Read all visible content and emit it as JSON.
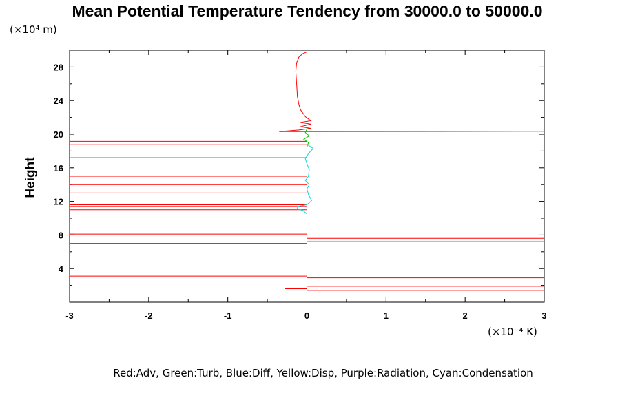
{
  "chart_data": {
    "type": "line",
    "title": "Mean Potential Temperature Tendency from 30000.0 to 50000.0",
    "ylabel": "Height",
    "y_unit": "(×10⁴ m)",
    "x_unit": "(×10⁻⁴ K)",
    "xlim": [
      -3,
      3
    ],
    "ylim": [
      0,
      30
    ],
    "x_ticks": [
      -3,
      -2,
      -1,
      0,
      1,
      2,
      3
    ],
    "x_tick_labels": [
      "-3",
      "-2",
      "-1",
      "0",
      "1",
      "2",
      "3"
    ],
    "y_ticks": [
      4,
      8,
      12,
      16,
      20,
      24,
      28
    ],
    "y_tick_labels": [
      "4",
      "8",
      "12",
      "16",
      "20",
      "24",
      "28"
    ],
    "legend_text": "Red:Adv, Green:Turb, Blue:Diff, Yellow:Disp, Purple:Radiation, Cyan:Condensation",
    "series": [
      {
        "name": "Adv",
        "color": "#ff0000",
        "profile": [
          [
            0.0,
            29.8
          ],
          [
            -0.05,
            29.6
          ],
          [
            -0.1,
            29.2
          ],
          [
            -0.13,
            28.5
          ],
          [
            -0.14,
            27.5
          ],
          [
            -0.13,
            26.0
          ],
          [
            -0.12,
            24.5
          ],
          [
            -0.1,
            23.5
          ],
          [
            -0.08,
            22.9
          ],
          [
            -0.05,
            22.5
          ],
          [
            -0.02,
            22.1
          ],
          [
            0.05,
            21.6
          ],
          [
            -0.08,
            21.4
          ],
          [
            0.05,
            21.2
          ],
          [
            -0.08,
            20.9
          ],
          [
            0.05,
            20.7
          ],
          [
            -0.1,
            20.5
          ],
          [
            -0.35,
            20.3
          ],
          [
            3.0,
            20.35
          ]
        ],
        "spikes": [
          {
            "y": 19.15,
            "x": -3.0
          },
          {
            "y": 18.75,
            "x": -3.0
          },
          {
            "y": 17.2,
            "x": -3.0
          },
          {
            "y": 15.0,
            "x": -3.0
          },
          {
            "y": 14.0,
            "x": -3.0
          },
          {
            "y": 13.0,
            "x": -3.0
          },
          {
            "y": 11.6,
            "x": -3.0
          },
          {
            "y": 11.4,
            "x": -3.0
          },
          {
            "y": 11.0,
            "x": -3.0
          },
          {
            "y": 8.1,
            "x": -3.0
          },
          {
            "y": 7.0,
            "x": -3.0
          },
          {
            "y": 7.6,
            "x": 3.0
          },
          {
            "y": 7.2,
            "x": 3.0
          },
          {
            "y": 3.1,
            "x": -3.0
          },
          {
            "y": 2.9,
            "x": 3.0
          },
          {
            "y": 1.9,
            "x": 3.0
          },
          {
            "y": 1.4,
            "x": 3.0
          },
          {
            "y": 1.6,
            "x": -0.28
          }
        ]
      },
      {
        "name": "Turb",
        "color": "#00cc00",
        "profile": [
          [
            0.0,
            1.5
          ],
          [
            0.0,
            18.5
          ],
          [
            0.02,
            19.0
          ],
          [
            -0.04,
            19.4
          ],
          [
            0.03,
            19.8
          ],
          [
            -0.02,
            20.2
          ],
          [
            0.0,
            20.6
          ]
        ]
      },
      {
        "name": "Diff",
        "color": "#0000ff",
        "profile": [
          [
            0.0,
            1.5
          ],
          [
            0.0,
            29.8
          ]
        ]
      },
      {
        "name": "Disp",
        "color": "#ffff00",
        "profile": [
          [
            0.0,
            1.5
          ],
          [
            0.0,
            11.0
          ]
        ]
      },
      {
        "name": "Radiation",
        "color": "#aa00ff",
        "profile": [
          [
            0.0,
            1.5
          ],
          [
            0.0,
            10.8
          ]
        ]
      },
      {
        "name": "Condensation",
        "color": "#00dddd",
        "profile": [
          [
            0.0,
            29.8
          ],
          [
            0.0,
            18.8
          ],
          [
            0.08,
            18.3
          ],
          [
            0.02,
            17.7
          ],
          [
            -0.02,
            17.1
          ],
          [
            0.0,
            16.5
          ],
          [
            0.03,
            15.8
          ],
          [
            0.02,
            15.0
          ],
          [
            -0.02,
            14.5
          ],
          [
            0.03,
            14.0
          ],
          [
            0.0,
            13.5
          ],
          [
            0.02,
            12.8
          ],
          [
            0.06,
            12.1
          ],
          [
            0.0,
            11.6
          ],
          [
            -0.12,
            11.4
          ],
          [
            -0.12,
            11.1
          ],
          [
            -0.05,
            10.9
          ],
          [
            0.0,
            10.5
          ],
          [
            0.0,
            1.5
          ]
        ]
      }
    ]
  }
}
